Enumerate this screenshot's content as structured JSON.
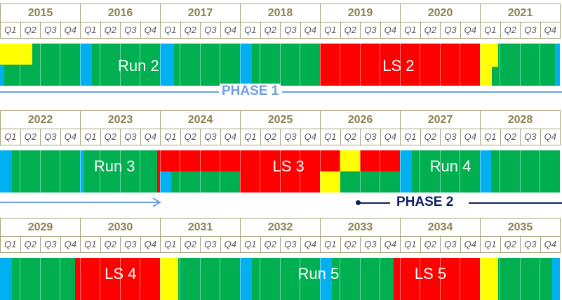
{
  "colors": {
    "green": "#00b050",
    "red": "#ff0000",
    "yellow": "#ffff00",
    "blue": "#00b0f0",
    "phase1": "#6ea0e8",
    "phase2": "#0f1e6a",
    "header_text": "#8a8250"
  },
  "quarters": [
    "Q1",
    "Q2",
    "Q3",
    "Q4"
  ],
  "rows": [
    {
      "years": [
        "2015",
        "2016",
        "2017",
        "2018",
        "2019",
        "2020",
        "2021"
      ],
      "segments": [
        {
          "from": 0,
          "to": 28,
          "color": "green",
          "top": 1
        },
        {
          "from": 0,
          "to": 1.6,
          "color": "yellow",
          "top": 0,
          "bottom": 0.5
        },
        {
          "from": 0,
          "to": 0.2,
          "color": "blue",
          "top": 0.5
        },
        {
          "from": 4,
          "to": 4.6,
          "color": "blue"
        },
        {
          "from": 8,
          "to": 8.7,
          "color": "blue"
        },
        {
          "from": 12,
          "to": 12.6,
          "color": "blue"
        },
        {
          "from": 16,
          "to": 24,
          "color": "red"
        },
        {
          "from": 24,
          "to": 24.9,
          "color": "yellow",
          "bottom": 0.55
        },
        {
          "from": 24,
          "to": 24.6,
          "color": "yellow",
          "top": 0.45
        },
        {
          "from": 27.75,
          "to": 28,
          "color": "blue"
        }
      ],
      "labels": [
        {
          "text": "Run 2",
          "at": 6.4
        },
        {
          "text": "LS 2",
          "at": 19.4
        }
      ]
    },
    {
      "years": [
        "2022",
        "2023",
        "2024",
        "2025",
        "2026",
        "2027",
        "2028"
      ],
      "segments": [
        {
          "from": 0,
          "to": 28,
          "color": "green"
        },
        {
          "from": 0,
          "to": 0.6,
          "color": "blue"
        },
        {
          "from": 4,
          "to": 4.2,
          "color": "blue"
        },
        {
          "from": 7.85,
          "to": 8.15,
          "color": "red"
        },
        {
          "from": 8,
          "to": 12,
          "color": "red",
          "bottom": 0.5
        },
        {
          "from": 8,
          "to": 8.55,
          "color": "blue",
          "top": 0.5
        },
        {
          "from": 12,
          "to": 16,
          "color": "red"
        },
        {
          "from": 16,
          "to": 20,
          "color": "red",
          "bottom": 0.5
        },
        {
          "from": 16,
          "to": 17,
          "color": "yellow",
          "top": 0.5
        },
        {
          "from": 17,
          "to": 18,
          "color": "yellow",
          "bottom": 0.5
        },
        {
          "from": 20,
          "to": 20.6,
          "color": "blue"
        },
        {
          "from": 24,
          "to": 24.55,
          "color": "blue"
        }
      ],
      "labels": [
        {
          "text": "Run 3",
          "at": 5.2
        },
        {
          "text": "LS 3",
          "at": 13.9
        },
        {
          "text": "Run 4",
          "at": 22.0
        }
      ]
    },
    {
      "years": [
        "2029",
        "2030",
        "2031",
        "2032",
        "2033",
        "2034",
        "2035"
      ],
      "segments": [
        {
          "from": 0,
          "to": 28,
          "color": "green"
        },
        {
          "from": 0,
          "to": 0.6,
          "color": "blue"
        },
        {
          "from": 3.75,
          "to": 4.25,
          "color": "red"
        },
        {
          "from": 4.25,
          "to": 8,
          "color": "red"
        },
        {
          "from": 8,
          "to": 8.9,
          "color": "yellow"
        },
        {
          "from": 12,
          "to": 12.6,
          "color": "blue"
        },
        {
          "from": 16,
          "to": 16.6,
          "color": "blue"
        },
        {
          "from": 19.7,
          "to": 20,
          "color": "red"
        },
        {
          "from": 20,
          "to": 24,
          "color": "red"
        },
        {
          "from": 24,
          "to": 24.9,
          "color": "yellow"
        },
        {
          "from": 27.6,
          "to": 28,
          "color": "blue"
        }
      ],
      "labels": [
        {
          "text": "LS 4",
          "at": 5.5
        },
        {
          "text": "Run 5",
          "at": 15.4
        },
        {
          "text": "LS 5",
          "at": 21.0
        }
      ]
    }
  ],
  "phases": [
    {
      "text": "PHASE 1",
      "color": "phase1"
    },
    {
      "text": "PHASE 2",
      "color": "phase2"
    }
  ]
}
